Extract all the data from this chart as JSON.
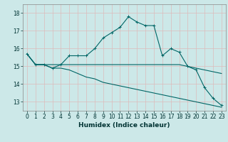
{
  "title": "",
  "xlabel": "Humidex (Indice chaleur)",
  "background_color": "#cce8e8",
  "grid_color": "#ddbbbb",
  "line_color": "#006666",
  "xlim": [
    -0.5,
    23.5
  ],
  "ylim": [
    12.5,
    18.5
  ],
  "yticks": [
    13,
    14,
    15,
    16,
    17,
    18
  ],
  "xticks": [
    0,
    1,
    2,
    3,
    4,
    5,
    6,
    7,
    8,
    9,
    10,
    11,
    12,
    13,
    14,
    15,
    16,
    17,
    18,
    19,
    20,
    21,
    22,
    23
  ],
  "xtick_labels": [
    "0",
    "1",
    "2",
    "3",
    "4",
    "5",
    "6",
    "7",
    "8",
    "9",
    "10",
    "11",
    "12",
    "13",
    "14",
    "15",
    "16",
    "17",
    "18",
    "19",
    "20",
    "21",
    "22",
    "23"
  ],
  "line1_x": [
    0,
    1,
    2,
    3,
    4,
    5,
    6,
    7,
    8,
    9,
    10,
    11,
    12,
    13,
    14,
    15,
    16,
    17,
    18,
    19,
    20,
    21,
    22,
    23
  ],
  "line1_y": [
    15.7,
    15.1,
    15.1,
    14.9,
    15.1,
    15.6,
    15.6,
    15.6,
    16.0,
    16.6,
    16.9,
    17.2,
    17.8,
    17.5,
    17.3,
    17.3,
    15.6,
    16.0,
    15.8,
    15.0,
    14.8,
    13.8,
    13.2,
    12.8
  ],
  "line2_x": [
    0,
    1,
    2,
    3,
    4,
    5,
    6,
    7,
    8,
    9,
    10,
    11,
    12,
    13,
    14,
    15,
    16,
    17,
    18,
    19,
    20,
    21,
    22,
    23
  ],
  "line2_y": [
    15.7,
    15.1,
    15.1,
    15.1,
    15.1,
    15.1,
    15.1,
    15.1,
    15.1,
    15.1,
    15.1,
    15.1,
    15.1,
    15.1,
    15.1,
    15.1,
    15.1,
    15.1,
    15.1,
    15.0,
    14.9,
    14.8,
    14.7,
    14.6
  ],
  "line3_x": [
    0,
    1,
    2,
    3,
    4,
    5,
    6,
    7,
    8,
    9,
    10,
    11,
    12,
    13,
    14,
    15,
    16,
    17,
    18,
    19,
    20,
    21,
    22,
    23
  ],
  "line3_y": [
    15.7,
    15.1,
    15.1,
    14.9,
    14.9,
    14.8,
    14.6,
    14.4,
    14.3,
    14.1,
    14.0,
    13.9,
    13.8,
    13.7,
    13.6,
    13.5,
    13.4,
    13.3,
    13.2,
    13.1,
    13.0,
    12.9,
    12.8,
    12.7
  ],
  "xlabel_fontsize": 6.5,
  "tick_fontsize": 5.5,
  "lw": 0.8,
  "marker_size": 2.0
}
